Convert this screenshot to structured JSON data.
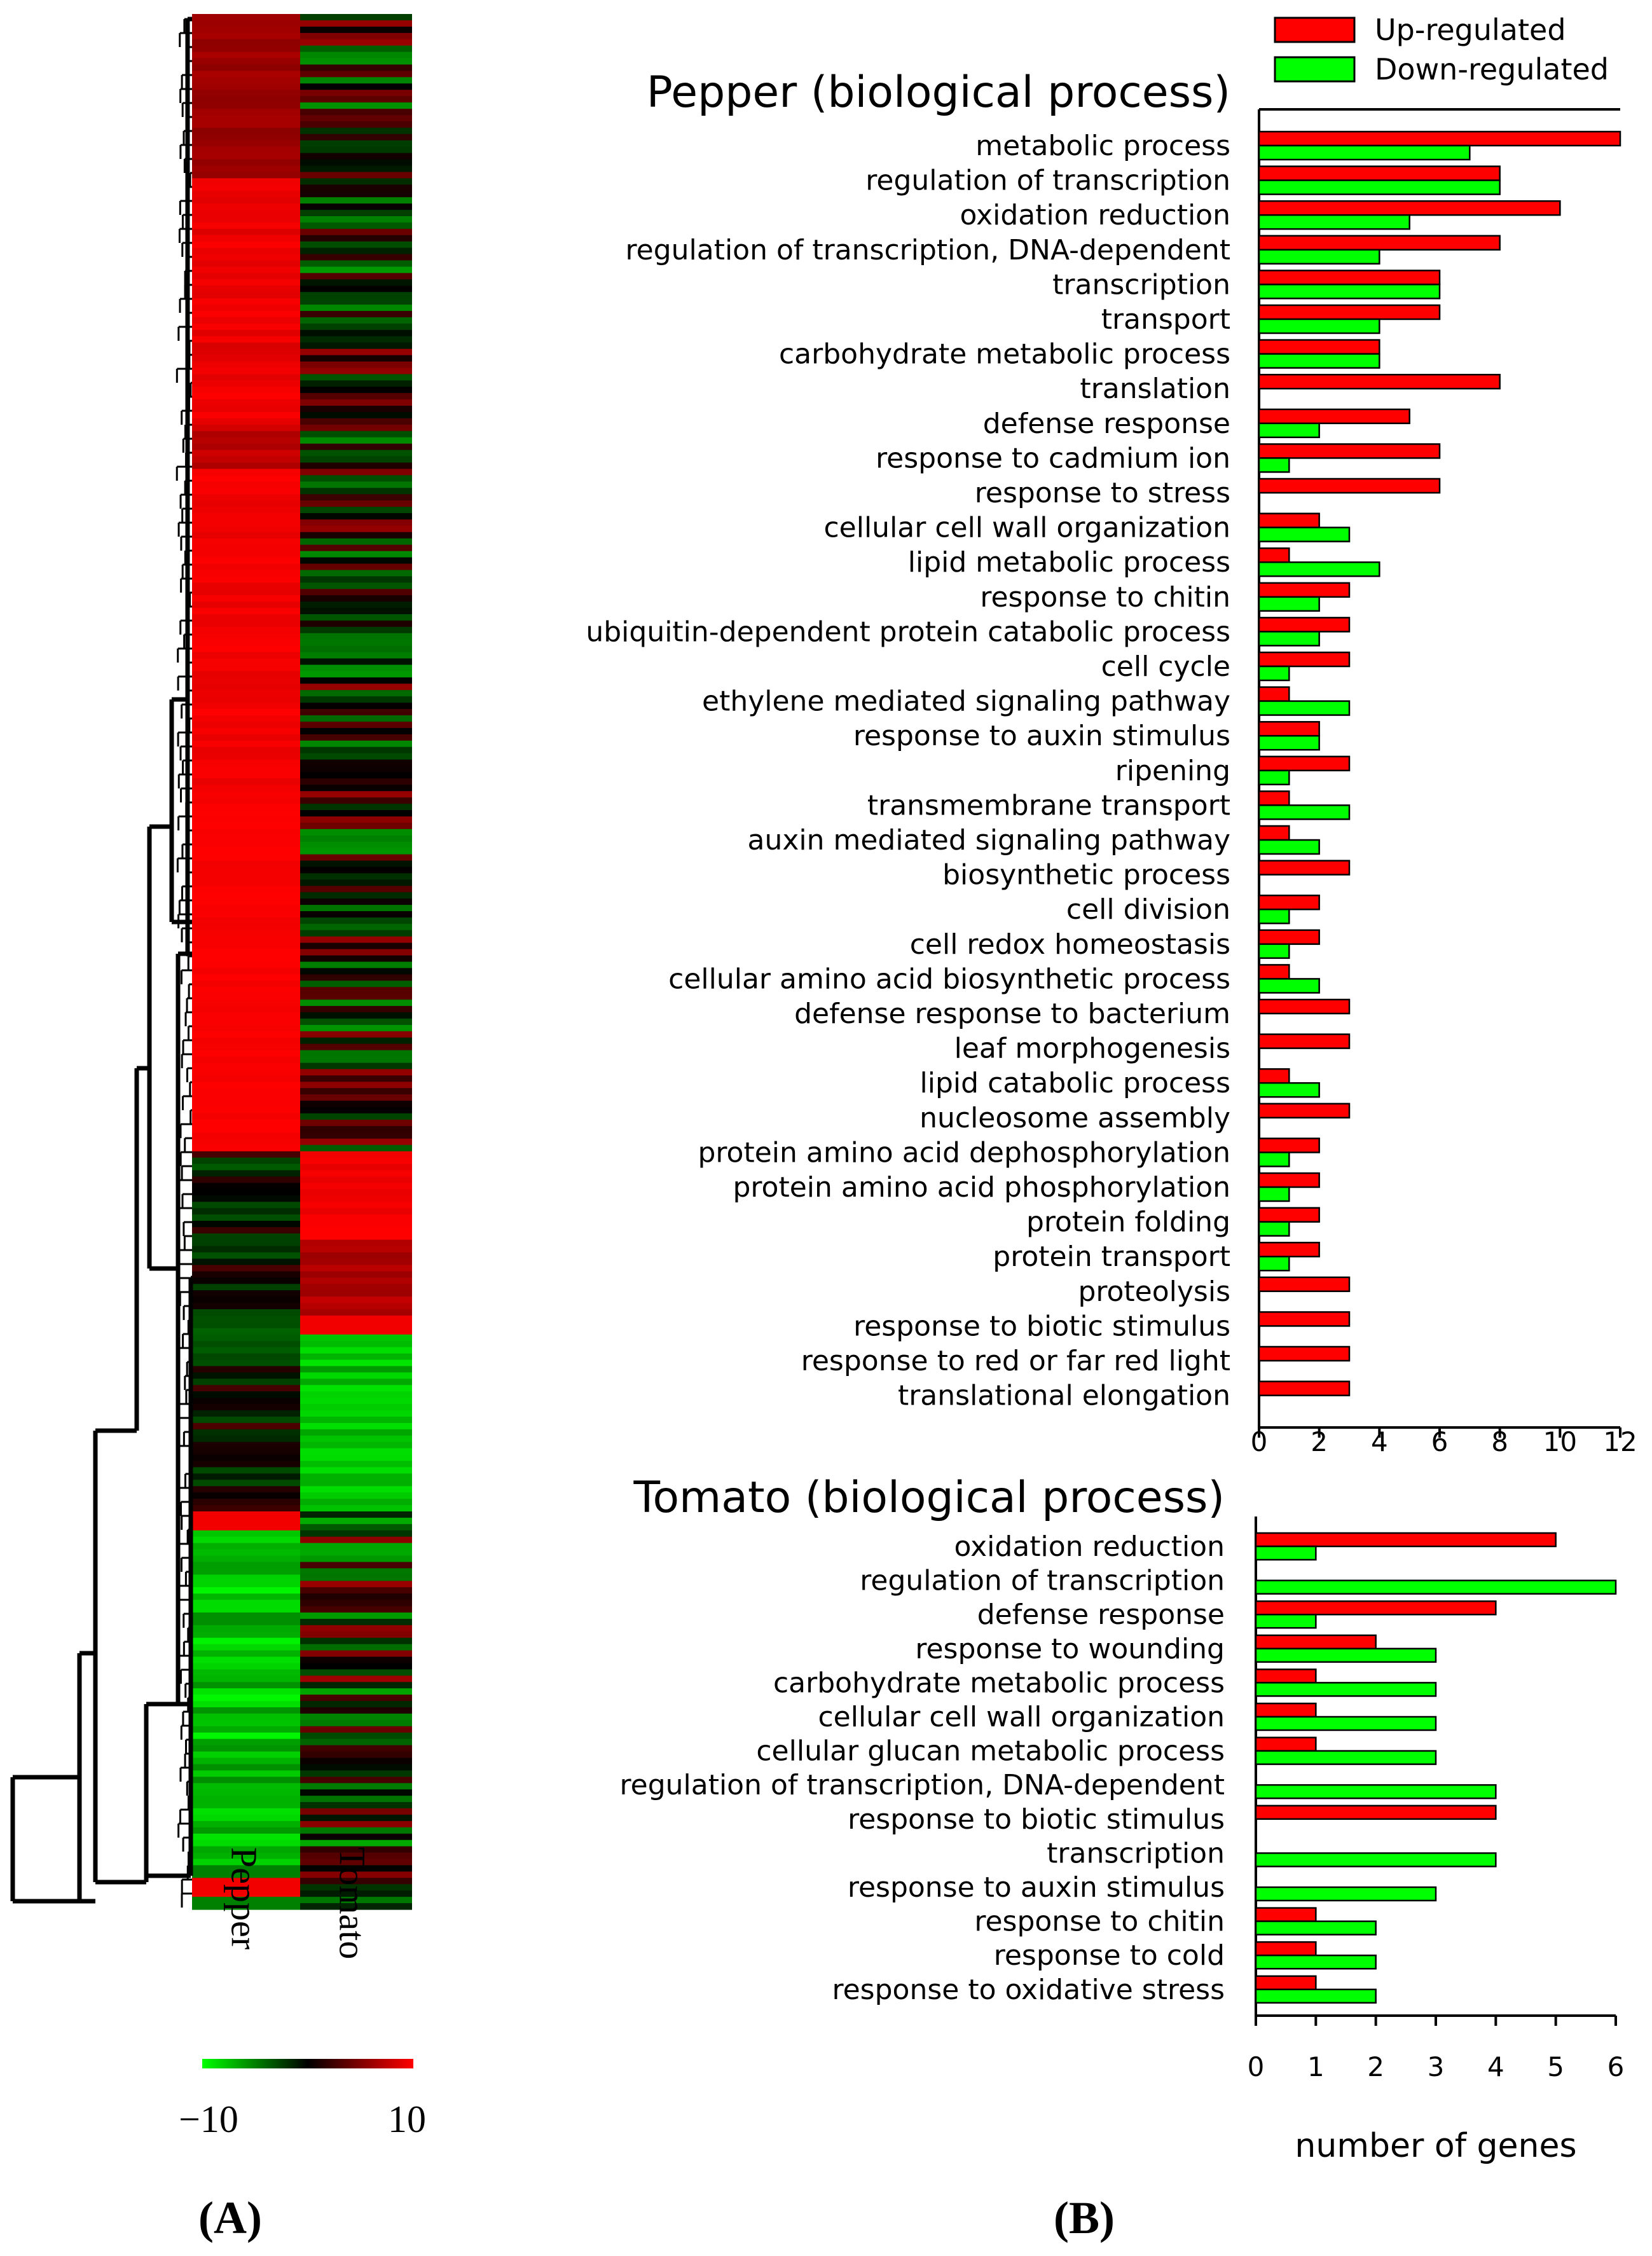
{
  "panel_labels": {
    "a": "(A)",
    "b": "(B)"
  },
  "heatmap": {
    "columns": [
      "Pepper",
      "Tomato"
    ],
    "colorbar_min": "−10",
    "colorbar_max": "10",
    "colors": {
      "low": "#00ff00",
      "mid": "#000000",
      "high": "#ff0000"
    }
  },
  "legend": {
    "up": "Up-regulated",
    "down": "Down-regulated"
  },
  "series_colors": {
    "up": "#ff0000",
    "down": "#00ff00"
  },
  "chart_data": [
    {
      "type": "bar",
      "orientation": "horizontal",
      "title": "Pepper (biological process)",
      "xlabel": "",
      "xlim": [
        0,
        12
      ],
      "ticks": [
        0,
        2,
        4,
        6,
        8,
        10,
        12
      ],
      "categories": [
        "metabolic process",
        "regulation of transcription",
        "oxidation reduction",
        "regulation of transcription, DNA-dependent",
        "transcription",
        "transport",
        "carbohydrate metabolic process",
        "translation",
        "defense response",
        "response to cadmium ion",
        "response to stress",
        "cellular cell wall organization",
        "lipid metabolic process",
        "response to chitin",
        "ubiquitin-dependent protein catabolic process",
        "cell cycle",
        "ethylene mediated signaling pathway",
        "response to auxin stimulus",
        "ripening",
        "transmembrane transport",
        "auxin mediated signaling pathway",
        "biosynthetic process",
        "cell division",
        "cell redox homeostasis",
        "cellular amino acid biosynthetic process",
        "defense response to bacterium",
        "leaf morphogenesis",
        "lipid catabolic process",
        "nucleosome assembly",
        "protein amino acid dephosphorylation",
        "protein amino acid phosphorylation",
        "protein folding",
        "protein transport",
        "proteolysis",
        "response to biotic stimulus",
        "response to red or far red light",
        "translational elongation"
      ],
      "series": [
        {
          "name": "Up-regulated",
          "values": [
            12,
            8,
            10,
            8,
            6,
            6,
            4,
            8,
            5,
            6,
            6,
            2,
            1,
            3,
            3,
            3,
            1,
            2,
            3,
            1,
            1,
            3,
            2,
            2,
            1,
            3,
            3,
            1,
            3,
            2,
            2,
            2,
            2,
            3,
            3,
            3,
            3
          ]
        },
        {
          "name": "Down-regulated",
          "values": [
            7,
            8,
            5,
            4,
            6,
            4,
            4,
            0,
            2,
            1,
            0,
            3,
            4,
            2,
            2,
            1,
            3,
            2,
            1,
            3,
            2,
            0,
            1,
            1,
            2,
            0,
            0,
            2,
            0,
            1,
            1,
            1,
            1,
            0,
            0,
            0,
            0
          ]
        }
      ]
    },
    {
      "type": "bar",
      "orientation": "horizontal",
      "title": "Tomato (biological process)",
      "xlabel": "number of genes",
      "xlim": [
        0,
        6
      ],
      "ticks": [
        0,
        1,
        2,
        3,
        4,
        5,
        6
      ],
      "categories": [
        "oxidation reduction",
        "regulation of transcription",
        "defense response",
        "response to wounding",
        "carbohydrate metabolic process",
        "cellular cell wall organization",
        "cellular glucan metabolic process",
        "regulation of transcription, DNA-dependent",
        "response to biotic stimulus",
        "transcription",
        "response to auxin stimulus",
        "response to chitin",
        "response to cold",
        "response to oxidative stress"
      ],
      "series": [
        {
          "name": "Up-regulated",
          "values": [
            5,
            0,
            4,
            2,
            1,
            1,
            1,
            0,
            4,
            0,
            0,
            1,
            1,
            1
          ]
        },
        {
          "name": "Down-regulated",
          "values": [
            1,
            6,
            1,
            3,
            3,
            3,
            3,
            4,
            0,
            4,
            3,
            2,
            2,
            2
          ]
        }
      ]
    }
  ]
}
